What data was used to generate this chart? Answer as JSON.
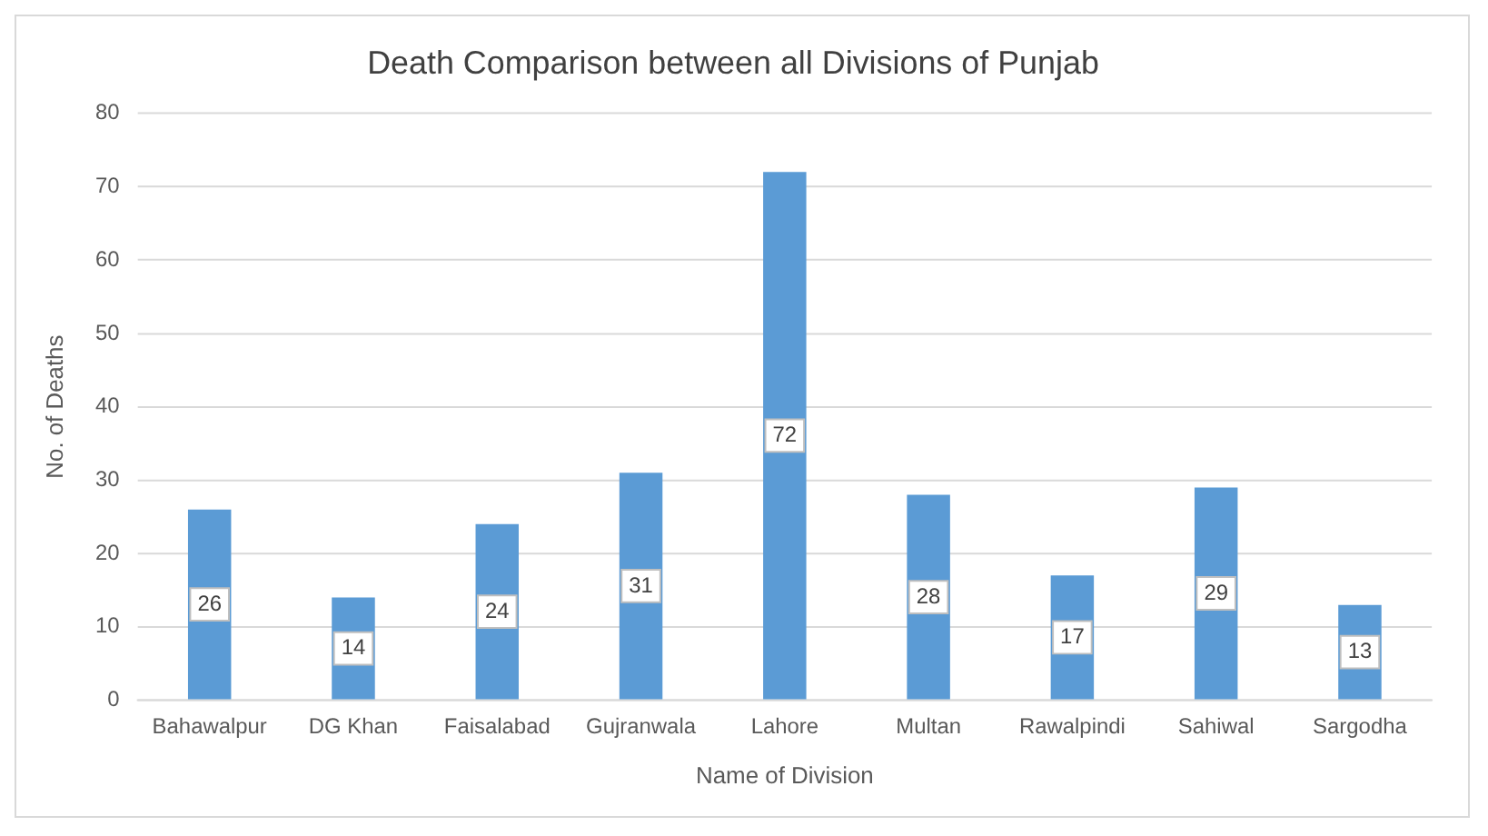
{
  "chart_data": {
    "type": "bar",
    "title": "Death Comparison between all Divisions of Punjab",
    "xlabel": "Name of Division",
    "ylabel": "No. of Deaths",
    "categories": [
      "Bahawalpur",
      "DG Khan",
      "Faisalabad",
      "Gujranwala",
      "Lahore",
      "Multan",
      "Rawalpindi",
      "Sahiwal",
      "Sargodha"
    ],
    "values": [
      26,
      14,
      24,
      31,
      72,
      28,
      17,
      29,
      13
    ],
    "color": "#5b9bd5",
    "ylim": [
      0,
      80
    ],
    "yticks": [
      0,
      10,
      20,
      30,
      40,
      50,
      60,
      70,
      80
    ],
    "grid": "y",
    "data_labels": true,
    "legend": false
  }
}
